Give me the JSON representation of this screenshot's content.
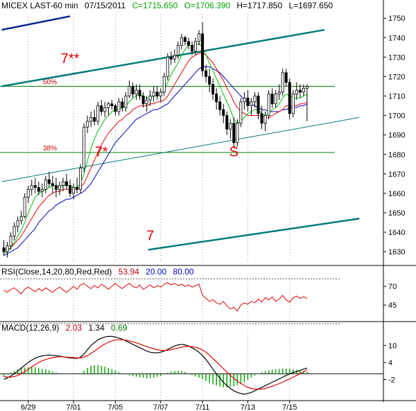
{
  "chart_data": [
    {
      "type": "candlestick",
      "header": {
        "symbol": "MICEX LAST-60 min",
        "date": "07/15/2011",
        "close_label": "C=1715.650",
        "open_label": "O=1706.390",
        "high_label": "H=1717.850",
        "low_label": "L=1697.650"
      },
      "ylim": [
        1624,
        1754
      ],
      "yticks": [
        1630,
        1640,
        1650,
        1660,
        1670,
        1680,
        1690,
        1700,
        1710,
        1720,
        1730,
        1740,
        1750
      ],
      "fib_levels": [
        {
          "label": "50%",
          "value": 1715
        },
        {
          "label": "38%",
          "value": 1681
        }
      ],
      "annotations": [
        {
          "text": "7**",
          "x": 19,
          "y": 1727
        },
        {
          "text": "7*",
          "x": 28,
          "y": 1679
        },
        {
          "text": "S",
          "x": 66,
          "y": 1679
        },
        {
          "text": "7",
          "x": 42,
          "y": 1636
        }
      ],
      "trendlines": [
        {
          "role": "blue",
          "from": [
            0,
            1744
          ],
          "to": [
            19,
            1751
          ]
        },
        {
          "role": "teal",
          "from": [
            0,
            1715
          ],
          "to": [
            92,
            1744
          ]
        },
        {
          "role": "teal",
          "from": [
            42,
            1631
          ],
          "to": [
            102,
            1647
          ]
        },
        {
          "role": "thin-teal",
          "from": [
            0,
            1666
          ],
          "to": [
            102,
            1699
          ]
        }
      ],
      "series_colors": {
        "ma_fast": "#00c000",
        "ma_mid": "#e00000",
        "ma_slow": "#0000c0",
        "candles": "#000000",
        "trend": "#007a7a",
        "trend_top": "#00208a",
        "fib": "#008000"
      },
      "candles_ohlc": [
        [
          1632,
          1636,
          1628,
          1630
        ],
        [
          1630,
          1635,
          1627,
          1633
        ],
        [
          1633,
          1640,
          1631,
          1638
        ],
        [
          1638,
          1645,
          1636,
          1643
        ],
        [
          1643,
          1648,
          1640,
          1646
        ],
        [
          1646,
          1651,
          1644,
          1648
        ],
        [
          1648,
          1660,
          1647,
          1658
        ],
        [
          1658,
          1664,
          1655,
          1662
        ],
        [
          1662,
          1667,
          1659,
          1664
        ],
        [
          1664,
          1668,
          1660,
          1663
        ],
        [
          1663,
          1666,
          1659,
          1661
        ],
        [
          1661,
          1665,
          1658,
          1662
        ],
        [
          1662,
          1669,
          1660,
          1667
        ],
        [
          1667,
          1671,
          1663,
          1665
        ],
        [
          1665,
          1669,
          1660,
          1664
        ],
        [
          1664,
          1668,
          1658,
          1662
        ],
        [
          1662,
          1666,
          1659,
          1664
        ],
        [
          1664,
          1668,
          1661,
          1666
        ],
        [
          1666,
          1670,
          1662,
          1664
        ],
        [
          1664,
          1667,
          1658,
          1660
        ],
        [
          1660,
          1665,
          1657,
          1663
        ],
        [
          1663,
          1668,
          1660,
          1662
        ],
        [
          1662,
          1675,
          1660,
          1673
        ],
        [
          1673,
          1696,
          1671,
          1694
        ],
        [
          1694,
          1700,
          1691,
          1697
        ],
        [
          1697,
          1702,
          1694,
          1699
        ],
        [
          1699,
          1703,
          1695,
          1697
        ],
        [
          1697,
          1707,
          1695,
          1705
        ],
        [
          1705,
          1708,
          1700,
          1702
        ],
        [
          1702,
          1707,
          1699,
          1704
        ],
        [
          1704,
          1707,
          1700,
          1706
        ],
        [
          1706,
          1708,
          1703,
          1705
        ],
        [
          1705,
          1706,
          1700,
          1702
        ],
        [
          1702,
          1709,
          1700,
          1707
        ],
        [
          1707,
          1709,
          1702,
          1704
        ],
        [
          1704,
          1712,
          1702,
          1710
        ],
        [
          1710,
          1718,
          1709,
          1715
        ],
        [
          1715,
          1717,
          1709,
          1711
        ],
        [
          1711,
          1716,
          1708,
          1713
        ],
        [
          1713,
          1716,
          1708,
          1710
        ],
        [
          1710,
          1712,
          1704,
          1706
        ],
        [
          1706,
          1710,
          1702,
          1708
        ],
        [
          1708,
          1713,
          1705,
          1710
        ],
        [
          1710,
          1715,
          1707,
          1712
        ],
        [
          1712,
          1715,
          1708,
          1710
        ],
        [
          1710,
          1714,
          1707,
          1712
        ],
        [
          1712,
          1722,
          1710,
          1720
        ],
        [
          1720,
          1732,
          1718,
          1730
        ],
        [
          1730,
          1733,
          1726,
          1729
        ],
        [
          1729,
          1734,
          1727,
          1731
        ],
        [
          1731,
          1738,
          1729,
          1736
        ],
        [
          1736,
          1742,
          1734,
          1740
        ],
        [
          1740,
          1741,
          1736,
          1738
        ],
        [
          1738,
          1740,
          1734,
          1736
        ],
        [
          1736,
          1738,
          1731,
          1733
        ],
        [
          1733,
          1740,
          1731,
          1738
        ],
        [
          1738,
          1744,
          1736,
          1742
        ],
        [
          1742,
          1748,
          1720,
          1723
        ],
        [
          1723,
          1726,
          1717,
          1720
        ],
        [
          1720,
          1724,
          1712,
          1716
        ],
        [
          1716,
          1719,
          1708,
          1711
        ],
        [
          1711,
          1714,
          1703,
          1707
        ],
        [
          1707,
          1710,
          1700,
          1703
        ],
        [
          1703,
          1706,
          1696,
          1700
        ],
        [
          1700,
          1702,
          1690,
          1693
        ],
        [
          1693,
          1698,
          1688,
          1696
        ],
        [
          1696,
          1699,
          1683,
          1686
        ],
        [
          1686,
          1698,
          1684,
          1696
        ],
        [
          1696,
          1709,
          1694,
          1707
        ],
        [
          1707,
          1712,
          1703,
          1709
        ],
        [
          1709,
          1713,
          1702,
          1705
        ],
        [
          1705,
          1709,
          1700,
          1707
        ],
        [
          1707,
          1712,
          1704,
          1710
        ],
        [
          1710,
          1712,
          1698,
          1701
        ],
        [
          1701,
          1705,
          1693,
          1696
        ],
        [
          1696,
          1702,
          1692,
          1700
        ],
        [
          1700,
          1713,
          1698,
          1711
        ],
        [
          1711,
          1714,
          1704,
          1706
        ],
        [
          1706,
          1713,
          1704,
          1711
        ],
        [
          1711,
          1716,
          1708,
          1712
        ],
        [
          1712,
          1724,
          1710,
          1722
        ],
        [
          1722,
          1724,
          1715,
          1717
        ],
        [
          1717,
          1719,
          1698,
          1701
        ],
        [
          1701,
          1713,
          1699,
          1711
        ],
        [
          1711,
          1717,
          1708,
          1713
        ],
        [
          1713,
          1716,
          1709,
          1712
        ],
        [
          1712,
          1716,
          1710,
          1714
        ],
        [
          1714,
          1716,
          1697,
          1715
        ]
      ],
      "ma_fast": [
        1629,
        1630,
        1632,
        1635,
        1638,
        1641,
        1645,
        1650,
        1654,
        1658,
        1660,
        1661,
        1662,
        1663,
        1664,
        1664,
        1663,
        1664,
        1664,
        1664,
        1663,
        1663,
        1665,
        1670,
        1677,
        1683,
        1688,
        1692,
        1695,
        1698,
        1700,
        1702,
        1703,
        1703,
        1704,
        1705,
        1707,
        1709,
        1710,
        1711,
        1710,
        1709,
        1709,
        1710,
        1710,
        1711,
        1713,
        1717,
        1721,
        1724,
        1727,
        1731,
        1734,
        1736,
        1736,
        1736,
        1737,
        1735,
        1731,
        1727,
        1723,
        1719,
        1715,
        1711,
        1707,
        1703,
        1698,
        1696,
        1697,
        1699,
        1701,
        1702,
        1703,
        1703,
        1701,
        1700,
        1701,
        1703,
        1704,
        1706,
        1709,
        1711,
        1710,
        1709,
        1709,
        1709,
        1710,
        1711
      ],
      "ma_mid": [
        1631,
        1631,
        1632,
        1634,
        1636,
        1638,
        1641,
        1644,
        1647,
        1650,
        1653,
        1655,
        1657,
        1659,
        1660,
        1661,
        1661,
        1662,
        1662,
        1662,
        1662,
        1662,
        1663,
        1665,
        1669,
        1673,
        1677,
        1681,
        1685,
        1688,
        1691,
        1693,
        1695,
        1697,
        1698,
        1700,
        1701,
        1703,
        1704,
        1705,
        1705,
        1705,
        1706,
        1706,
        1707,
        1707,
        1708,
        1710,
        1713,
        1716,
        1719,
        1722,
        1725,
        1728,
        1730,
        1731,
        1732,
        1732,
        1731,
        1729,
        1727,
        1724,
        1721,
        1718,
        1714,
        1711,
        1707,
        1704,
        1702,
        1701,
        1700,
        1700,
        1700,
        1700,
        1700,
        1699,
        1699,
        1700,
        1701,
        1702,
        1703,
        1705,
        1705,
        1705,
        1705,
        1706,
        1706,
        1707
      ],
      "ma_slow": [
        1628,
        1629,
        1630,
        1631,
        1632,
        1634,
        1636,
        1638,
        1640,
        1642,
        1645,
        1647,
        1649,
        1651,
        1652,
        1654,
        1655,
        1656,
        1657,
        1657,
        1658,
        1659,
        1660,
        1661,
        1663,
        1665,
        1668,
        1671,
        1674,
        1677,
        1680,
        1683,
        1686,
        1688,
        1690,
        1692,
        1694,
        1696,
        1698,
        1699,
        1700,
        1701,
        1702,
        1703,
        1703,
        1704,
        1705,
        1706,
        1708,
        1710,
        1712,
        1714,
        1716,
        1718,
        1720,
        1722,
        1724,
        1725,
        1725,
        1725,
        1724,
        1723,
        1722,
        1720,
        1718,
        1716,
        1714,
        1712,
        1710,
        1708,
        1707,
        1706,
        1705,
        1704,
        1703,
        1703,
        1702,
        1702,
        1702,
        1702,
        1703,
        1703,
        1704,
        1704,
        1704,
        1705,
        1705,
        1706
      ]
    },
    {
      "type": "line",
      "header": {
        "name": "RSI(Close,14,20,80,Red,Red)",
        "value": "53.94",
        "low": "20.00",
        "high": "80.00"
      },
      "ylim": [
        22,
        85
      ],
      "yticks": [
        45,
        70
      ],
      "guides": [
        80,
        20
      ],
      "values": [
        65,
        62,
        66,
        68,
        64,
        60,
        66,
        69,
        66,
        63,
        67,
        64,
        68,
        65,
        62,
        66,
        69,
        65,
        62,
        66,
        70,
        66,
        72,
        74,
        70,
        67,
        71,
        68,
        73,
        70,
        66,
        70,
        74,
        70,
        67,
        71,
        74,
        70,
        68,
        72,
        66,
        69,
        72,
        68,
        71,
        69,
        73,
        75,
        72,
        74,
        71,
        73,
        70,
        72,
        69,
        71,
        73,
        58,
        54,
        50,
        52,
        48,
        46,
        50,
        44,
        40,
        42,
        37,
        45,
        48,
        46,
        50,
        48,
        53,
        49,
        55,
        52,
        56,
        50,
        53,
        58,
        52,
        49,
        55,
        57,
        54,
        56,
        54
      ]
    },
    {
      "type": "line",
      "header": {
        "name": "MACD(12,26,9)",
        "value1": "2.03",
        "value2": "1.34",
        "value3": "0.69"
      },
      "ylim": [
        -9,
        15
      ],
      "yticks": [
        -2,
        4,
        10
      ],
      "zero_line": 0,
      "macd": [
        -2,
        -1.5,
        -0.8,
        0,
        1,
        2,
        3,
        4,
        4.8,
        5.5,
        6,
        6.3,
        6.5,
        6.6,
        6.5,
        6.4,
        6.2,
        6,
        5.8,
        5.6,
        5.5,
        5.4,
        5.8,
        7,
        8.5,
        10,
        11,
        12,
        12.6,
        13,
        13.2,
        13.2,
        13,
        12.6,
        12.2,
        11.6,
        11,
        10.4,
        9.8,
        9.2,
        8.6,
        8,
        7.6,
        7.4,
        7.4,
        7.6,
        8,
        8.6,
        9.2,
        9.8,
        10.2,
        10.4,
        10.2,
        9.8,
        9.2,
        8.4,
        7.6,
        6.4,
        5,
        3.4,
        1.6,
        0,
        -1.6,
        -3,
        -4.2,
        -5.2,
        -6,
        -6.6,
        -7,
        -7.2,
        -7,
        -6.6,
        -6,
        -5.4,
        -4.8,
        -4.2,
        -3.6,
        -3,
        -2.4,
        -1.8,
        -1.2,
        -0.6,
        0,
        0.4,
        0.8,
        1.2,
        1.6,
        2.03
      ],
      "signal": [
        -1,
        -1.2,
        -1.2,
        -1,
        -0.6,
        0,
        0.8,
        1.6,
        2.4,
        3.2,
        4,
        4.6,
        5,
        5.4,
        5.7,
        5.9,
        6,
        6,
        5.9,
        5.8,
        5.7,
        5.6,
        5.6,
        5.9,
        6.4,
        7.2,
        8,
        8.9,
        9.8,
        10.5,
        11.1,
        11.6,
        11.9,
        12,
        12,
        11.9,
        11.6,
        11.3,
        10.9,
        10.5,
        10,
        9.6,
        9.2,
        8.8,
        8.5,
        8.3,
        8.2,
        8.3,
        8.5,
        8.8,
        9.1,
        9.4,
        9.6,
        9.7,
        9.6,
        9.4,
        9,
        8.4,
        7.6,
        6.6,
        5.4,
        4.2,
        3,
        1.8,
        0.6,
        -0.6,
        -1.6,
        -2.6,
        -3.4,
        -4.2,
        -4.8,
        -5.2,
        -5.4,
        -5.5,
        -5.4,
        -5.2,
        -4.8,
        -4.4,
        -4,
        -3.5,
        -3,
        -2.4,
        -1.8,
        -1.2,
        -0.6,
        0,
        0.7,
        1.34
      ]
    }
  ],
  "x_axis": {
    "tick_labels": [
      "6/29",
      "7/01",
      "7/05",
      "7/07",
      "7/11",
      "7/13",
      "7/15"
    ],
    "tick_positions": [
      7,
      20,
      32,
      45,
      57,
      70,
      82
    ]
  }
}
